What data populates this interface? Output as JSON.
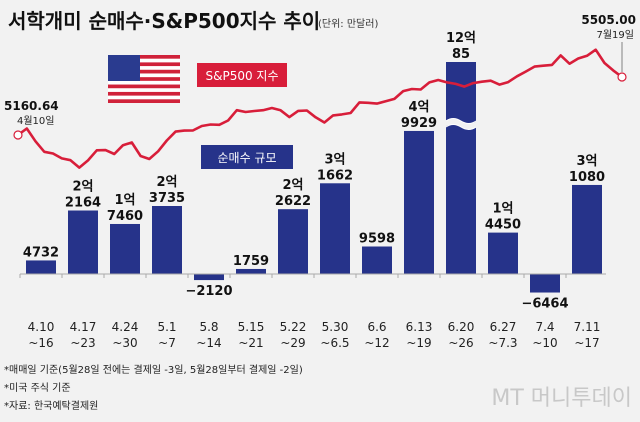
{
  "title": "서학개미 순매수·S&P500지수 추이",
  "unit": "(단위: 만달러)",
  "colors": {
    "bar": "#26338a",
    "line": "#d81e3a",
    "background": "#f2f2f2"
  },
  "footnotes": [
    "*매매일 기준(5월28일 전에는 결제일 -3일, 5월28일부터 결제일 -2일)",
    "*미국 주식 기준",
    "*자료: 한국예탁결제원"
  ],
  "watermark": "MT 머니투데이",
  "chart_data": [
    {
      "type": "bar",
      "legend_label": "순매수 규모",
      "categories": [
        [
          "4.10",
          "~16"
        ],
        [
          "4.17",
          "~23"
        ],
        [
          "4.24",
          "~30"
        ],
        [
          "5.1",
          "~7"
        ],
        [
          "5.8",
          "~14"
        ],
        [
          "5.15",
          "~21"
        ],
        [
          "5.22",
          "~29"
        ],
        [
          "5.30",
          "~6.5"
        ],
        [
          "6.6",
          "~12"
        ],
        [
          "6.13",
          "~19"
        ],
        [
          "6.20",
          "~26"
        ],
        [
          "6.27",
          "~7.3"
        ],
        [
          "7.4",
          "~10"
        ],
        [
          "7.11",
          "~17"
        ]
      ],
      "values": [
        4732,
        22164,
        17460,
        23735,
        -2120,
        1759,
        22622,
        31662,
        9598,
        49929,
        120085,
        14450,
        -6464,
        31080
      ],
      "data_labels": [
        [
          "",
          "4732"
        ],
        [
          "2억",
          "2164"
        ],
        [
          "1억",
          "7460"
        ],
        [
          "2억",
          "3735"
        ],
        [
          "",
          "−2120"
        ],
        [
          "",
          "1759"
        ],
        [
          "2억",
          "2622"
        ],
        [
          "3억",
          "1662"
        ],
        [
          "",
          "9598"
        ],
        [
          "4억",
          "9929"
        ],
        [
          "12억",
          "85"
        ],
        [
          "1억",
          "4450"
        ],
        [
          "",
          "−6464"
        ],
        [
          "3억",
          "1080"
        ]
      ],
      "axis_break": true
    },
    {
      "type": "line",
      "legend_label": "S&P500 지수",
      "start_annotation": {
        "value": "5160.64",
        "date": "4월10일"
      },
      "end_annotation": {
        "value": "5505.00",
        "date": "7월19일"
      },
      "values": [
        5160.64,
        5199,
        5123,
        5061,
        5051,
        5022,
        5011,
        4967,
        5010,
        5070,
        5071,
        5048,
        5100,
        5116,
        5036,
        5018,
        5064,
        5128,
        5181,
        5187,
        5188,
        5214,
        5223,
        5221,
        5247,
        5308,
        5297,
        5303,
        5308,
        5321,
        5307,
        5267,
        5304,
        5306,
        5266,
        5235,
        5277,
        5283,
        5291,
        5354,
        5352,
        5347,
        5361,
        5375,
        5421,
        5434,
        5431,
        5473,
        5487,
        5473,
        5464,
        5448,
        5469,
        5477,
        5483,
        5460,
        5475,
        5509,
        5537,
        5567,
        5572,
        5577,
        5633,
        5584,
        5615,
        5631,
        5667,
        5588,
        5544,
        5505.0
      ]
    }
  ]
}
